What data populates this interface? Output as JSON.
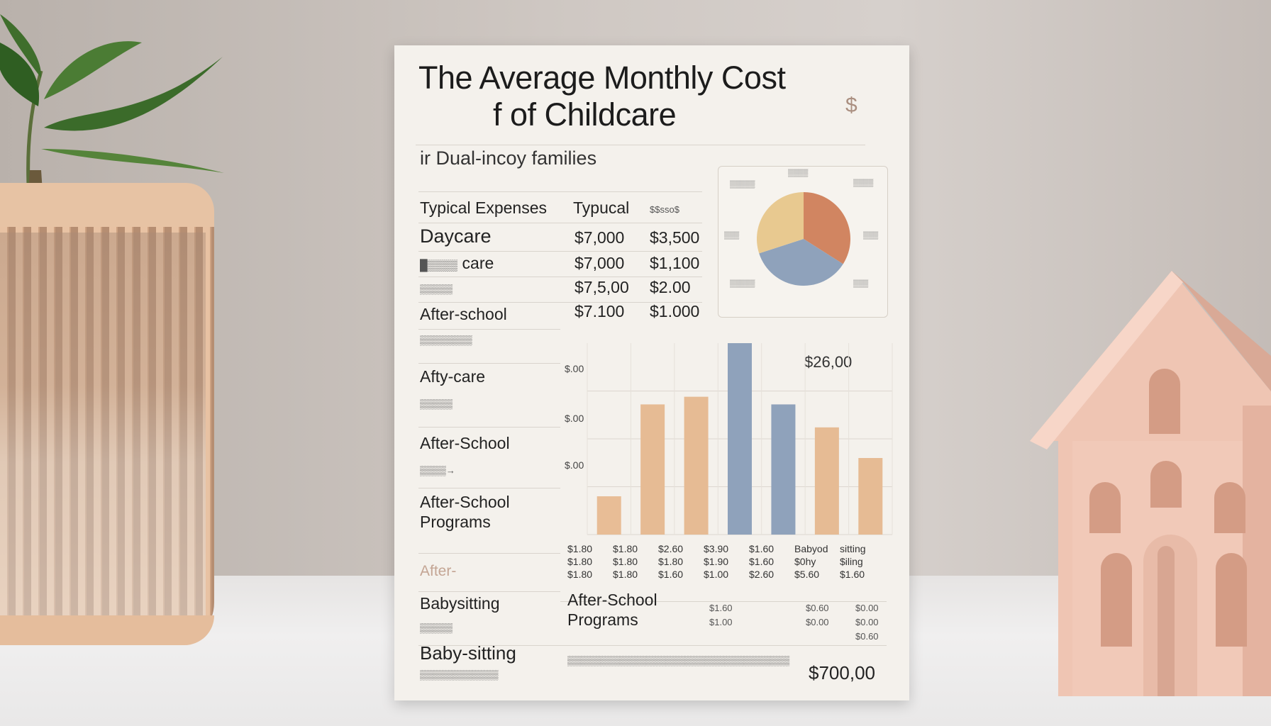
{
  "poster": {
    "title_line1": "The Average Monthly Cost",
    "title_line2": "f of Childcare",
    "subtitle": "ir Dual-incoy  families",
    "coin_symbol": "$",
    "table_header": {
      "col1": "Typical Expenses",
      "col2": "Typucal",
      "col3": "$$sso$"
    },
    "table_rows": [
      {
        "label": "Daycare",
        "v1": "$7,000",
        "v2": "$3,500"
      },
      {
        "label": "care",
        "v1": "$7,000",
        "v2": "$1,100"
      },
      {
        "label": "",
        "v1": "$7,5,00",
        "v2": "$2.00"
      },
      {
        "label": "After-school",
        "v1": "$7.100",
        "v2": "$1.000"
      }
    ],
    "left_labels": [
      "Afty-care",
      "After-School",
      "After-School Programs",
      "After-",
      "Babysitting",
      "Baby-sitting"
    ],
    "bar_chart_value_label": "$26,00",
    "y_tick_labels": [
      "$.00",
      "$.00",
      "$.00"
    ],
    "x_tick_rows": [
      [
        "$1.80",
        "$1.80",
        "$2.60",
        "$3.90",
        "$1.60",
        "Babyod",
        "sitting"
      ],
      [
        "$1.80",
        "$1.80",
        "$1.80",
        "$1.90",
        "$1.60",
        "$0hy",
        "$iling"
      ],
      [
        "$1.80",
        "$1.80",
        "$1.60",
        "$1.00",
        "$2.60",
        "$5.60",
        "$1.60"
      ]
    ],
    "after_school_programs_bottom": "After-School Programs",
    "bottom_small_values": [
      "$1.60",
      "$1.00",
      "$0.60",
      "$0.00",
      "$0.00",
      "$0.00",
      "$0.60"
    ],
    "bottom_total": "$700,00"
  },
  "chart_data": [
    {
      "type": "pie",
      "title": "",
      "slices": [
        {
          "label": "",
          "value": 34,
          "color": "#d18561"
        },
        {
          "label": "",
          "value": 36,
          "color": "#8fa2bb"
        },
        {
          "label": "",
          "value": 30,
          "color": "#e8c990"
        }
      ]
    },
    {
      "type": "bar",
      "title": "",
      "categories": [
        "1",
        "2",
        "3",
        "4",
        "5",
        "6",
        "7"
      ],
      "values": [
        0.5,
        1.7,
        1.8,
        2.5,
        1.7,
        1.4,
        1.0
      ],
      "colors": [
        "#e8bd96",
        "#e6bb94",
        "#e6bb94",
        "#8fa2bb",
        "#8fa2bb",
        "#e6bb94",
        "#e6bb94"
      ],
      "ylim": [
        0,
        2.5
      ]
    }
  ]
}
